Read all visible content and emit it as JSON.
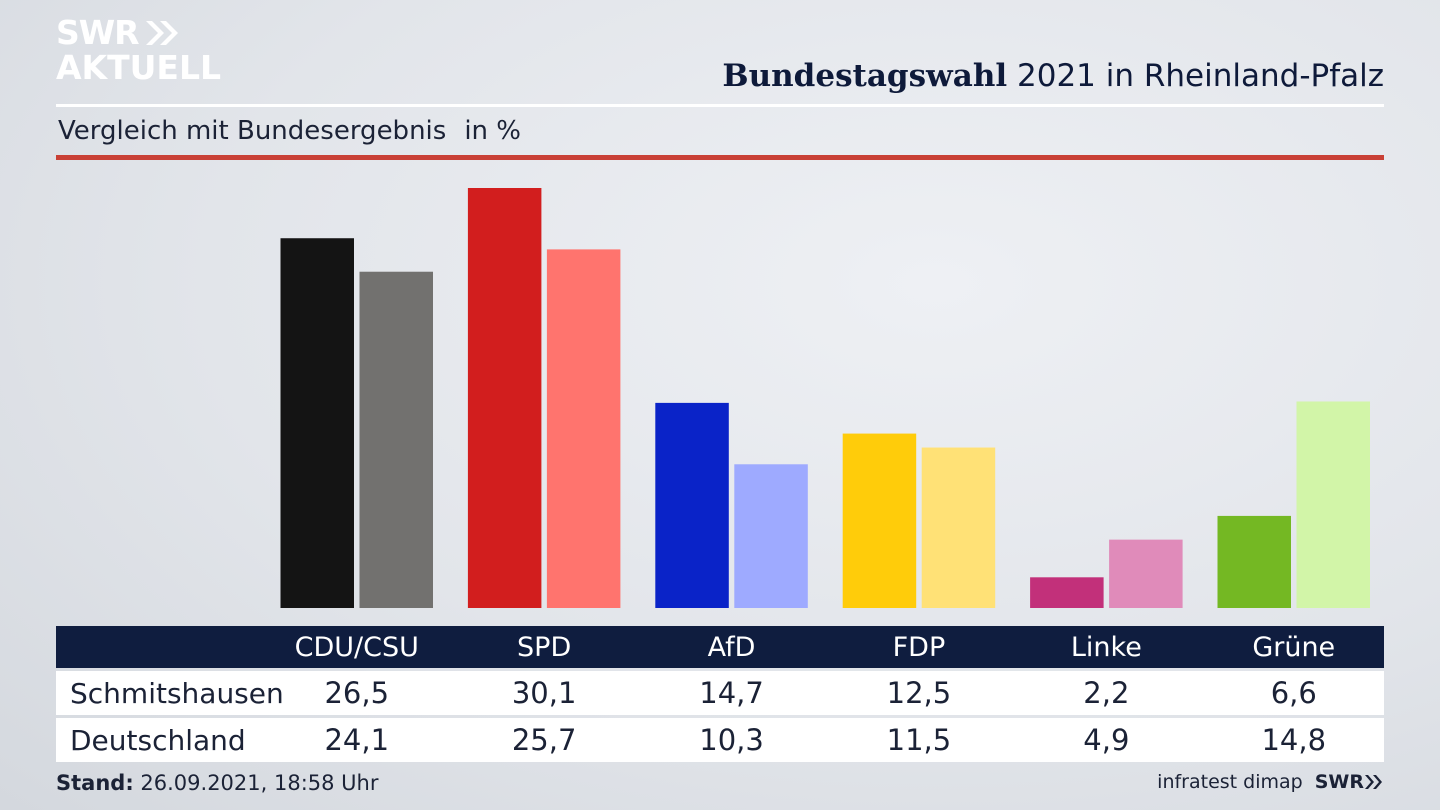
{
  "header": {
    "logo_line1": "SWR",
    "logo_line2": "AKTUELL",
    "title_bold": "Bundestagswahl",
    "title_rest": " 2021 in Rheinland-Pfalz",
    "subtitle": "Vergleich mit Bundesergebnis",
    "unit": "in %"
  },
  "chart_data": {
    "type": "bar",
    "categories": [
      "CDU/CSU",
      "SPD",
      "AfD",
      "FDP",
      "Linke",
      "Grüne"
    ],
    "series": [
      {
        "name": "Schmitshausen",
        "values": [
          26.5,
          30.1,
          14.7,
          12.5,
          2.2,
          6.6
        ],
        "colors": [
          "#141414",
          "#d21e1e",
          "#0a23c8",
          "#ffcc0a",
          "#c2307a",
          "#74b823"
        ]
      },
      {
        "name": "Deutschland",
        "values": [
          24.1,
          25.7,
          10.3,
          11.5,
          4.9,
          14.8
        ],
        "colors": [
          "#72716f",
          "#ff746e",
          "#9eaaff",
          "#ffe176",
          "#e08bba",
          "#d2f5a8"
        ]
      }
    ],
    "value_labels": [
      [
        "26,5",
        "30,1",
        "14,7",
        "12,5",
        "2,2",
        "6,6"
      ],
      [
        "24,1",
        "25,7",
        "10,3",
        "11,5",
        "4,9",
        "14,8"
      ]
    ],
    "ylim": [
      0,
      30.1
    ],
    "grid": false
  },
  "footer": {
    "stand_label": "Stand:",
    "stand_value": " 26.09.2021, 18:58 Uhr",
    "source": "infratest dimap",
    "source_logo": "SWR"
  },
  "colors": {
    "header_bar": "#0f1d3f",
    "accent_rule": "#c94036"
  }
}
